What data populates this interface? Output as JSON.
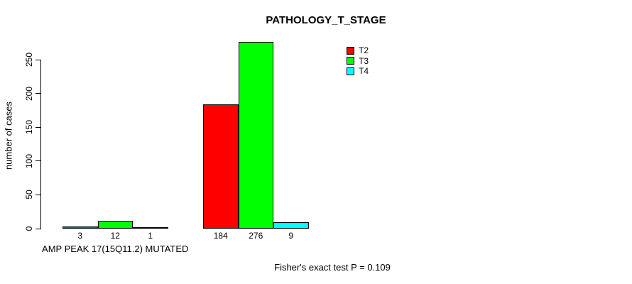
{
  "chart_data": {
    "type": "bar",
    "title": "PATHOLOGY_T_STAGE",
    "ylabel": "number of cases",
    "xlabel": "AMP PEAK 17(15Q11.2) MUTATED",
    "categories": [
      "AMP PEAK 17(15Q11.2) MUTATED",
      ""
    ],
    "series": [
      {
        "name": "T2",
        "color": "#FF0000",
        "values": [
          3,
          184
        ]
      },
      {
        "name": "T3",
        "color": "#00FF00",
        "values": [
          12,
          276
        ]
      },
      {
        "name": "T4",
        "color": "#00FFFF",
        "values": [
          1,
          9
        ]
      }
    ],
    "bar_labels": [
      [
        3,
        12,
        1
      ],
      [
        184,
        276,
        9
      ]
    ],
    "yticks": [
      0,
      50,
      100,
      150,
      200,
      250
    ],
    "axis_range": [
      0,
      250
    ],
    "grid": false,
    "legend_position": "top-right",
    "annotation": "Fisher's exact test P = 0.109",
    "colors": {
      "background": "#FFFFFF",
      "text": "#000000",
      "axis": "#000000"
    }
  }
}
